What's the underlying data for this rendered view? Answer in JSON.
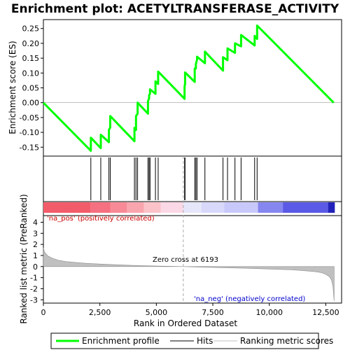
{
  "chart_data": {
    "type": "line",
    "title": "Enrichment plot: ACETYLTRANSFERASE_ACTIVITY",
    "top_panel": {
      "ylabel": "Enrichment score (ES)",
      "ylim": [
        -0.18,
        0.28
      ],
      "yticks": [
        -0.15,
        -0.1,
        -0.05,
        0.0,
        0.05,
        0.1,
        0.15,
        0.2,
        0.25
      ],
      "ytick_labels": [
        "-0.15",
        "-0.10",
        "-0.05",
        "0.00",
        "0.05",
        "0.10",
        "0.15",
        "0.20",
        "0.25"
      ],
      "color": "#00ff00",
      "series": [
        {
          "name": "Enrichment profile",
          "x": [
            0,
            2100,
            2100,
            2540,
            2540,
            2900,
            2900,
            2960,
            2960,
            4030,
            4030,
            4100,
            4100,
            4170,
            4170,
            4630,
            4630,
            4680,
            4680,
            4720,
            4720,
            4960,
            4960,
            5080,
            5080,
            6250,
            6250,
            6270,
            6270,
            6700,
            6700,
            6750,
            6750,
            6800,
            6800,
            7150,
            7150,
            7950,
            7950,
            8150,
            8150,
            8480,
            8480,
            8750,
            8750,
            9350,
            9350,
            9460,
            9460,
            12850
          ],
          "values": [
            0.0,
            -0.162,
            -0.118,
            -0.153,
            -0.108,
            -0.133,
            -0.092,
            -0.083,
            -0.045,
            -0.13,
            -0.085,
            -0.092,
            -0.045,
            -0.037,
            0.0,
            -0.037,
            0.005,
            0.015,
            0.025,
            0.03,
            0.045,
            0.03,
            0.072,
            0.063,
            0.105,
            0.013,
            0.055,
            0.063,
            0.102,
            0.07,
            0.115,
            0.115,
            0.13,
            0.145,
            0.155,
            0.133,
            0.172,
            0.108,
            0.153,
            0.143,
            0.183,
            0.168,
            0.2,
            0.19,
            0.228,
            0.193,
            0.225,
            0.215,
            0.26,
            0.0
          ]
        }
      ]
    },
    "hits": [
      2100,
      2540,
      2900,
      2960,
      4030,
      4100,
      4170,
      4630,
      4680,
      4720,
      4960,
      5080,
      6250,
      6270,
      6700,
      6750,
      6800,
      7150,
      7950,
      8150,
      8480,
      8750,
      9350,
      9460
    ],
    "bar_colors": [
      {
        "start": 0,
        "end": 2100,
        "color": "#f25c6a"
      },
      {
        "start": 2100,
        "end": 2960,
        "color": "#f57080"
      },
      {
        "start": 2960,
        "end": 3700,
        "color": "#f78a96"
      },
      {
        "start": 3700,
        "end": 4450,
        "color": "#f9a5ae"
      },
      {
        "start": 4450,
        "end": 5200,
        "color": "#fbc2c9"
      },
      {
        "start": 5200,
        "end": 6193,
        "color": "#fbd8e6"
      },
      {
        "start": 6193,
        "end": 7000,
        "color": "#e6e6fb"
      },
      {
        "start": 7000,
        "end": 8000,
        "color": "#d8d8fb"
      },
      {
        "start": 8000,
        "end": 9500,
        "color": "#c8c8fa"
      },
      {
        "start": 9500,
        "end": 10600,
        "color": "#8686f0"
      },
      {
        "start": 10600,
        "end": 12600,
        "color": "#5a5ae6"
      },
      {
        "start": 12600,
        "end": 12900,
        "color": "#2222bb"
      }
    ],
    "bottom_panel": {
      "ylabel": "Ranked list metric (PreRanked)",
      "ylim": [
        -3.3,
        4.6
      ],
      "yticks": [
        -3,
        -2,
        -1,
        0,
        1,
        2,
        3,
        4
      ],
      "ytick_labels": [
        "-3",
        "-2",
        "-1",
        "0",
        "1",
        "2",
        "3",
        "4"
      ],
      "metric_x": [
        0,
        50,
        200,
        400,
        700,
        1000,
        1500,
        2000,
        3000,
        4000,
        5000,
        6193,
        7000,
        8000,
        9000,
        10000,
        11000,
        11500,
        12000,
        12300,
        12500,
        12650,
        12750,
        12820,
        12850,
        12870
      ],
      "metric_y": [
        1.7,
        1.3,
        0.95,
        0.75,
        0.55,
        0.45,
        0.35,
        0.28,
        0.18,
        0.1,
        0.05,
        0.0,
        -0.05,
        -0.1,
        -0.15,
        -0.22,
        -0.3,
        -0.37,
        -0.45,
        -0.55,
        -0.7,
        -0.9,
        -1.2,
        -1.8,
        -2.6,
        -3.1
      ],
      "fill_color": "#c0c0c0"
    },
    "xlabel": "Rank in Ordered Dataset",
    "xlim": [
      0,
      13200
    ],
    "xticks": [
      0,
      2500,
      5000,
      7500,
      10000,
      12500
    ],
    "xtick_labels": [
      "0",
      "2,500",
      "5,000",
      "7,500",
      "10,000",
      "12,500"
    ],
    "zero_cross": 6193,
    "annotations": {
      "pos_label": "'na_pos' (positively correlated)",
      "neg_label": "'na_neg' (negatively correlated)",
      "zero_cross_label": "Zero cross at 6193",
      "pos_color": "#cc0000",
      "neg_color": "#0000cc"
    },
    "legend": [
      {
        "name": "Enrichment profile",
        "color": "#00ff00"
      },
      {
        "name": "Hits",
        "color": "#000000"
      },
      {
        "name": "Ranking metric scores",
        "color": "#c0c0c0"
      }
    ],
    "legend_placement": "bottom"
  }
}
